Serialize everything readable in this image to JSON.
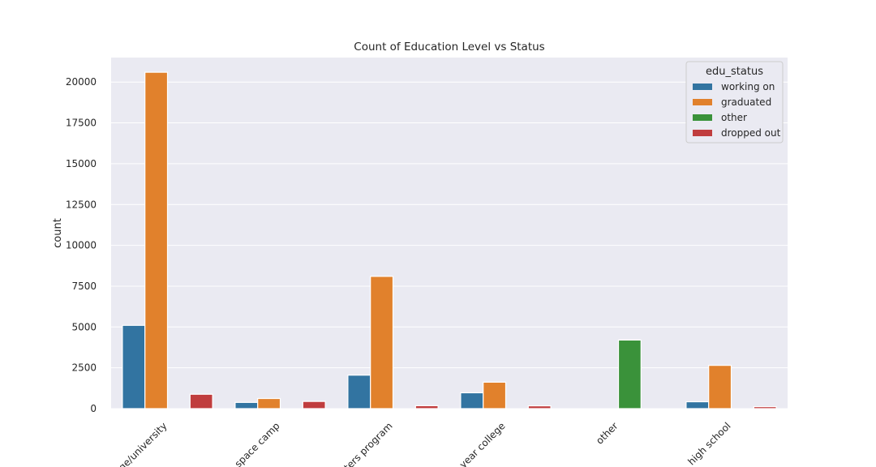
{
  "chart_data": {
    "type": "bar",
    "title": "Count of Education Level vs Status",
    "xlabel": "",
    "ylabel": "count",
    "ylim": [
      0,
      21500
    ],
    "yticks": [
      0,
      2500,
      5000,
      7500,
      10000,
      12500,
      15000,
      17500,
      20000
    ],
    "grid": true,
    "categories": [
      "college/university",
      "space camp",
      "masters program",
      "two-year college",
      "other",
      "high school"
    ],
    "series": [
      {
        "name": "working on",
        "color": "#3274a1",
        "values": [
          5100,
          380,
          2050,
          970,
          0,
          420
        ]
      },
      {
        "name": "graduated",
        "color": "#e1812c",
        "values": [
          20600,
          620,
          8100,
          1620,
          0,
          2650
        ]
      },
      {
        "name": "other",
        "color": "#3a923a",
        "values": [
          0,
          0,
          0,
          0,
          4200,
          0
        ]
      },
      {
        "name": "dropped out",
        "color": "#c03d3e",
        "values": [
          880,
          440,
          180,
          170,
          0,
          120
        ]
      }
    ],
    "legend": {
      "title": "edu_status",
      "placement": "top-right"
    }
  }
}
